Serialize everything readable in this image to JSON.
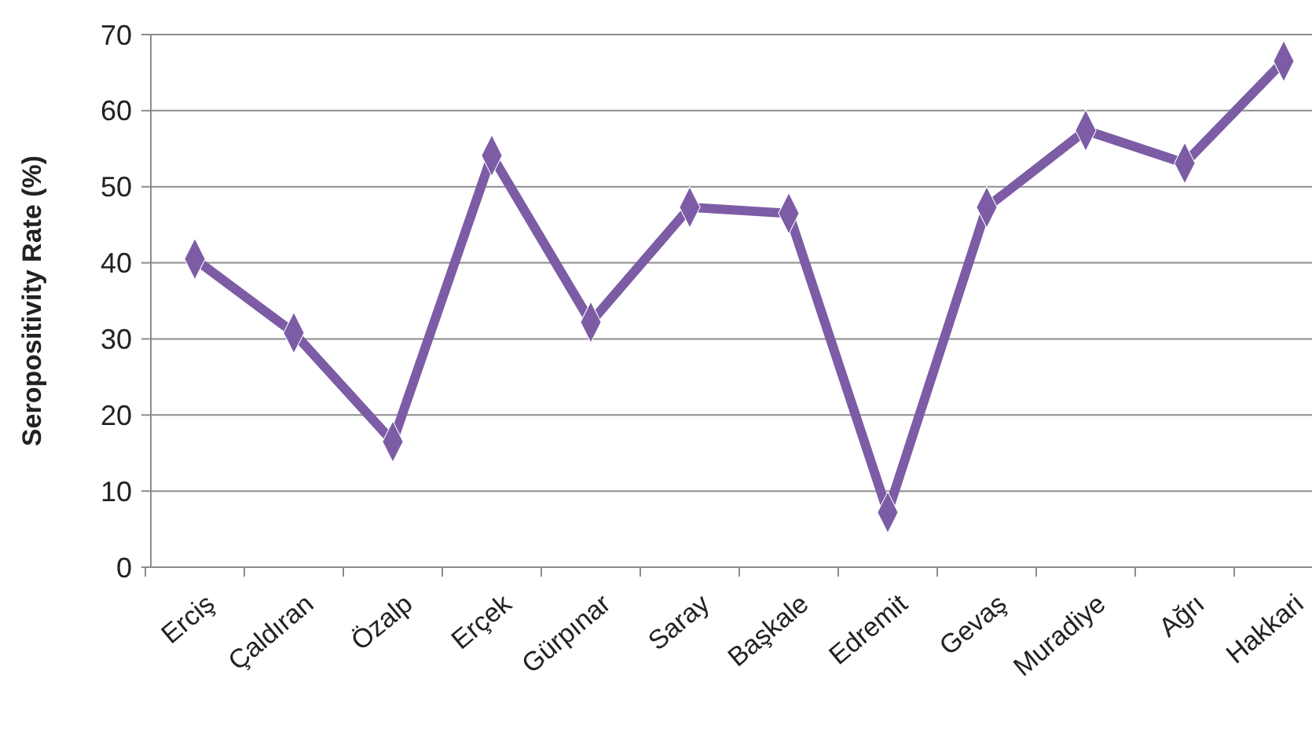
{
  "chart_data": {
    "type": "line",
    "ylabel": "Seropositivity Rate (%)",
    "categories": [
      "Erciş",
      "Çaldıran",
      "Özalp",
      "Erçek",
      "Gürpınar",
      "Saray",
      "Başkale",
      "Edremit",
      "Gevaş",
      "Muradiye",
      "Ağrı",
      "Hakkari"
    ],
    "series": [
      {
        "color": "#7d5ca6",
        "values": [
          40.5,
          30.8,
          16.5,
          54.1,
          32.2,
          47.3,
          46.5,
          7.2,
          47.3,
          57.4,
          53.1,
          66.5
        ]
      }
    ],
    "ylim": [
      0,
      70
    ],
    "yticks": [
      0,
      10,
      20,
      30,
      40,
      50,
      60,
      70
    ],
    "grid": "y",
    "marker": "diamond",
    "line_style": "solid"
  }
}
